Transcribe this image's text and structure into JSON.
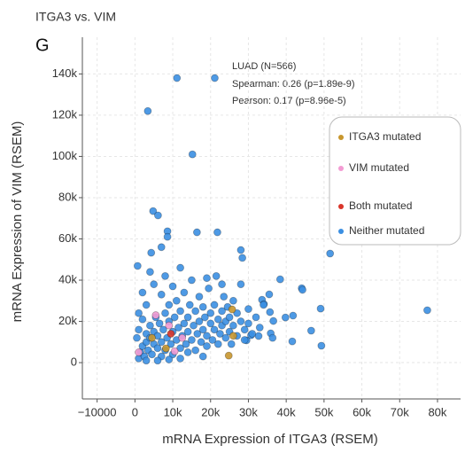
{
  "chart_data": {
    "type": "scatter",
    "title": "ITGA3 vs. VIM",
    "panel_label": "G",
    "x_label": "mRNA Expression of ITGA3 (RSEM)",
    "y_label": "mRNA Expression of VIM (RSEM)",
    "annotations": [
      "LUAD (N=566)",
      "Spearman: 0.26 (p=1.89e-9)",
      "Pearson: 0.17 (p=8.96e-5)"
    ],
    "xlim": [
      -13900,
      86100
    ],
    "ylim": [
      -17600,
      157800
    ],
    "xticks": [
      {
        "value": -10000,
        "label": "−10000"
      },
      0,
      {
        "value": 10000,
        "label": "10k"
      },
      {
        "value": 20000,
        "label": "20k"
      },
      {
        "value": 30000,
        "label": "30k"
      },
      {
        "value": 40000,
        "label": "40k"
      },
      {
        "value": 50000,
        "label": "50k"
      },
      {
        "value": 60000,
        "label": "60k"
      },
      {
        "value": 70000,
        "label": "70k"
      },
      {
        "value": 80000,
        "label": "80k"
      }
    ],
    "yticks": [
      0,
      {
        "value": 20000,
        "label": "20k"
      },
      {
        "value": 40000,
        "label": "40k"
      },
      {
        "value": 60000,
        "label": "60k"
      },
      {
        "value": 80000,
        "label": "80k"
      },
      {
        "value": 100000,
        "label": "100k"
      },
      {
        "value": 120000,
        "label": "120k"
      },
      {
        "value": 140000,
        "label": "140k"
      }
    ],
    "grid": true,
    "legend": "upper right",
    "series": [
      {
        "name": "ITGA3 mutated",
        "color": "#c8962d",
        "x": [
          25700,
          24800,
          4500,
          8200,
          26000
        ],
        "y": [
          25800,
          3400,
          12000,
          6900,
          13000
        ]
      },
      {
        "name": "VIM mutated",
        "color": "#f39bd3",
        "x": [
          1000,
          5500,
          9000,
          12500,
          10500
        ],
        "y": [
          5000,
          23000,
          18000,
          12000,
          5500
        ]
      },
      {
        "name": "Both mutated",
        "color": "#d9352a",
        "x": [
          9500
        ],
        "y": [
          14000
        ]
      },
      {
        "name": "Neither mutated",
        "color": "#3b8fe2",
        "x": [
          11100,
          21100,
          3400,
          15200,
          4800,
          6100,
          8600,
          8600,
          16400,
          21800,
          28000,
          28400,
          4300,
          700,
          77300,
          51600,
          44100,
          44300,
          38400,
          49100,
          41800,
          46600,
          49300,
          41600,
          39800,
          36600,
          35900,
          32700,
          36400,
          29500,
          30700,
          33600,
          35500,
          34100,
          35700,
          1000,
          1500,
          2000,
          2500,
          3000,
          3000,
          3500,
          4000,
          4000,
          4500,
          5000,
          5000,
          5500,
          6000,
          6000,
          6500,
          7000,
          7000,
          7500,
          8000,
          8000,
          8500,
          9000,
          9000,
          9500,
          10000,
          10000,
          10500,
          11000,
          11000,
          11500,
          12000,
          12000,
          12500,
          13000,
          13000,
          13500,
          14000,
          14000,
          14500,
          15000,
          15000,
          15500,
          16000,
          16000,
          16500,
          17000,
          17000,
          17500,
          18000,
          18000,
          18500,
          19000,
          19000,
          19500,
          20000,
          20000,
          20500,
          21000,
          21000,
          21500,
          22000,
          22000,
          22500,
          23000,
          23000,
          23500,
          24000,
          24000,
          24500,
          25000,
          25000,
          25500,
          26000,
          26000,
          27000,
          27000,
          28000,
          28000,
          29000,
          29000,
          30000,
          30000,
          31000,
          32000,
          33000,
          34000,
          12000,
          14000,
          18000,
          6000,
          9000,
          3000,
          2000,
          1000,
          500,
          1000,
          2000,
          3000,
          4000,
          5000,
          7000,
          8000,
          10000,
          12000,
          19000,
          23000,
          7000
        ],
        "y": [
          138000,
          138000,
          122000,
          101000,
          73500,
          71400,
          63700,
          61000,
          63200,
          63200,
          54600,
          50800,
          53300,
          46900,
          25400,
          52900,
          36100,
          35300,
          40400,
          26200,
          22800,
          15500,
          8200,
          10300,
          21900,
          20200,
          14200,
          12900,
          12000,
          10800,
          13300,
          30500,
          33100,
          28400,
          24500,
          2000,
          5000,
          8000,
          3000,
          10000,
          14000,
          6000,
          12000,
          18000,
          4000,
          9000,
          15000,
          22000,
          7000,
          13000,
          19000,
          3000,
          10000,
          16000,
          24000,
          6000,
          12000,
          20000,
          28000,
          9000,
          15000,
          4000,
          22000,
          30000,
          11000,
          17000,
          7000,
          25000,
          13000,
          19000,
          34000,
          9000,
          22000,
          15000,
          28000,
          11000,
          40000,
          18000,
          6000,
          25000,
          14000,
          20000,
          32000,
          10000,
          16000,
          27000,
          22000,
          8000,
          13000,
          36000,
          19000,
          24000,
          11000,
          28000,
          16000,
          42000,
          21000,
          9000,
          14000,
          25000,
          18000,
          32000,
          12000,
          20000,
          27000,
          15000,
          22000,
          9000,
          30000,
          18000,
          13000,
          24000,
          20000,
          38000,
          16000,
          11000,
          26000,
          19000,
          14000,
          22000,
          17000,
          28000,
          2000,
          5000,
          3000,
          1000,
          1500,
          1000,
          21000,
          16000,
          12000,
          24000,
          34000,
          28000,
          44000,
          38000,
          33000,
          42000,
          37000,
          46000,
          41000,
          38000,
          56000
        ]
      }
    ]
  }
}
